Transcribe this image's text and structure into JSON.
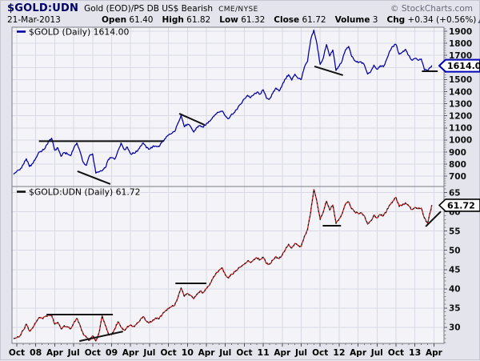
{
  "page": {
    "bg": "#e4e4ec",
    "plot_bg": "#f4f4f8",
    "grid_color": "#d9d9e4",
    "border_color": "#7a7a85",
    "annotation_color": "#111111"
  },
  "header": {
    "symbol": "$GOLD:UDN",
    "description": "Gold (EOD)/PS DB US$ Bearish",
    "exchange": "CME/NYSE",
    "copyright": "© StockCharts.com",
    "date": "21-Mar-2013",
    "quote": [
      {
        "label": "Open",
        "value": "61.40"
      },
      {
        "label": "High",
        "value": "61.82"
      },
      {
        "label": "Low",
        "value": "61.32"
      },
      {
        "label": "Close",
        "value": "61.72"
      },
      {
        "label": "Volume",
        "value": "3"
      },
      {
        "label": "Chg",
        "value": "+0.34 (+0.56%)"
      }
    ],
    "chg_arrow": "▲"
  },
  "xaxis": {
    "origin_label": "months indexed from Oct-2007",
    "labels": [
      {
        "m": 0,
        "text": "Oct"
      },
      {
        "m": 3,
        "text": "08",
        "bold": true
      },
      {
        "m": 6,
        "text": "Apr"
      },
      {
        "m": 9,
        "text": "Jul"
      },
      {
        "m": 12,
        "text": "Oct"
      },
      {
        "m": 15,
        "text": "09",
        "bold": true
      },
      {
        "m": 18,
        "text": "Apr"
      },
      {
        "m": 21,
        "text": "Jul"
      },
      {
        "m": 24,
        "text": "Oct"
      },
      {
        "m": 27,
        "text": "10",
        "bold": true
      },
      {
        "m": 30,
        "text": "Apr"
      },
      {
        "m": 33,
        "text": "Jul"
      },
      {
        "m": 36,
        "text": "Oct"
      },
      {
        "m": 39,
        "text": "11",
        "bold": true
      },
      {
        "m": 42,
        "text": "Apr"
      },
      {
        "m": 45,
        "text": "Jul"
      },
      {
        "m": 48,
        "text": "Oct"
      },
      {
        "m": 51,
        "text": "12",
        "bold": true
      },
      {
        "m": 54,
        "text": "Apr"
      },
      {
        "m": 57,
        "text": "Jul"
      },
      {
        "m": 60,
        "text": "Oct"
      },
      {
        "m": 63,
        "text": "13",
        "bold": true
      },
      {
        "m": 66,
        "text": "Apr"
      }
    ]
  },
  "chart_data": [
    {
      "type": "line",
      "symbol": "$GOLD",
      "legend": "$GOLD (Daily) 1614.00",
      "last_value": "1614.00",
      "last_value_num": 1614.0,
      "line_color": "#0000a6",
      "legend_dash_color": "#0000a6",
      "callout_border": "#0000b4",
      "ylim": [
        615,
        1933
      ],
      "yticks": [
        700,
        800,
        900,
        1000,
        1100,
        1200,
        1300,
        1400,
        1500,
        1600,
        1700,
        1800,
        1900
      ],
      "minor_tick_step": 20,
      "series_start_month_index": -0.5,
      "series_step_months": 0.5,
      "series_end_month_index": 65.7,
      "values": [
        715,
        740,
        755,
        795,
        845,
        780,
        805,
        850,
        900,
        910,
        935,
        985,
        1015,
        915,
        935,
        865,
        895,
        885,
        870,
        930,
        975,
        905,
        815,
        790,
        870,
        885,
        725,
        735,
        745,
        770,
        840,
        855,
        840,
        910,
        975,
        920,
        940,
        885,
        890,
        905,
        945,
        975,
        935,
        925,
        945,
        950,
        945,
        985,
        1010,
        1040,
        1055,
        1070,
        1140,
        1205,
        1110,
        1130,
        1110,
        1065,
        1105,
        1120,
        1105,
        1135,
        1155,
        1190,
        1215,
        1230,
        1240,
        1200,
        1175,
        1215,
        1230,
        1270,
        1300,
        1340,
        1370,
        1350,
        1375,
        1395,
        1380,
        1415,
        1345,
        1340,
        1385,
        1430,
        1405,
        1455,
        1505,
        1540,
        1495,
        1545,
        1510,
        1500,
        1600,
        1650,
        1830,
        1910,
        1790,
        1625,
        1680,
        1790,
        1695,
        1745,
        1575,
        1610,
        1660,
        1745,
        1775,
        1690,
        1655,
        1640,
        1645,
        1620,
        1545,
        1565,
        1620,
        1585,
        1615,
        1605,
        1665,
        1735,
        1775,
        1790,
        1710,
        1725,
        1750,
        1700,
        1660,
        1675,
        1660,
        1670,
        1580,
        1575,
        1605,
        1614
      ],
      "annotations": [
        [
          3.5,
          990,
          23.2,
          990
        ],
        [
          9.6,
          741,
          14.8,
          635
        ],
        [
          25.7,
          1218,
          29.7,
          1125
        ],
        [
          47.1,
          1609,
          51.6,
          1536
        ],
        [
          64.1,
          1569,
          66.6,
          1569
        ]
      ]
    },
    {
      "type": "line",
      "symbol": "$GOLD:UDN",
      "legend": "$GOLD:UDN (Daily) 61.72",
      "last_value": "61.72",
      "last_value_num": 61.72,
      "line_color": "#cc1111",
      "overlay_dash_color": "#151515",
      "legend_dash_color": "#111111",
      "callout_border": "#000000",
      "ylim": [
        25.8,
        66.6
      ],
      "yticks": [
        30,
        35,
        40,
        45,
        50,
        55,
        60,
        65
      ],
      "minor_tick_step": 1,
      "series_start_month_index": -0.5,
      "series_step_months": 0.5,
      "series_end_month_index": 65.7,
      "values": [
        27.0,
        27.3,
        27.8,
        29.2,
        30.8,
        29.0,
        29.8,
        31.2,
        32.5,
        32.3,
        32.8,
        33.2,
        33.1,
        30.8,
        31.3,
        29.6,
        30.4,
        30.1,
        29.6,
        31.1,
        32.3,
        30.5,
        28.3,
        27.4,
        26.6,
        27.8,
        26.4,
        28.5,
        33.0,
        30.5,
        28.2,
        28.0,
        29.5,
        31.4,
        30.0,
        29.2,
        30.2,
        30.6,
        30.2,
        31.0,
        31.8,
        32.8,
        31.6,
        31.2,
        31.8,
        32.4,
        32.2,
        33.3,
        34.2,
        34.8,
        35.4,
        35.8,
        37.8,
        40.2,
        38.0,
        38.8,
        38.2,
        37.4,
        38.6,
        39.4,
        39.0,
        40.0,
        41.0,
        42.6,
        44.0,
        44.8,
        45.4,
        43.6,
        42.8,
        43.8,
        44.4,
        45.2,
        45.8,
        46.4,
        47.2,
        46.8,
        47.6,
        48.0,
        47.6,
        48.2,
        46.6,
        46.4,
        47.4,
        48.4,
        47.8,
        48.8,
        50.2,
        51.6,
        50.6,
        51.8,
        51.2,
        51.0,
        53.6,
        55.4,
        60.0,
        65.8,
        62.5,
        58.0,
        60.0,
        62.8,
        60.5,
        61.8,
        57.0,
        58.2,
        59.6,
        62.0,
        62.6,
        60.8,
        60.0,
        59.6,
        59.8,
        59.0,
        56.8,
        57.6,
        59.2,
        58.4,
        59.3,
        59.0,
        60.2,
        61.8,
        62.8,
        63.8,
        61.4,
        61.8,
        62.4,
        61.6,
        60.6,
        61.2,
        60.8,
        61.0,
        58.4,
        57.0,
        60.5,
        61.72
      ],
      "annotations": [
        [
          4.7,
          33.3,
          15.2,
          33.3
        ],
        [
          9.9,
          26.4,
          16.8,
          28.9
        ],
        [
          25.1,
          41.4,
          30.0,
          41.4
        ],
        [
          48.4,
          56.4,
          51.3,
          56.4
        ],
        [
          64.7,
          56.2,
          67.1,
          60.1
        ]
      ]
    }
  ]
}
